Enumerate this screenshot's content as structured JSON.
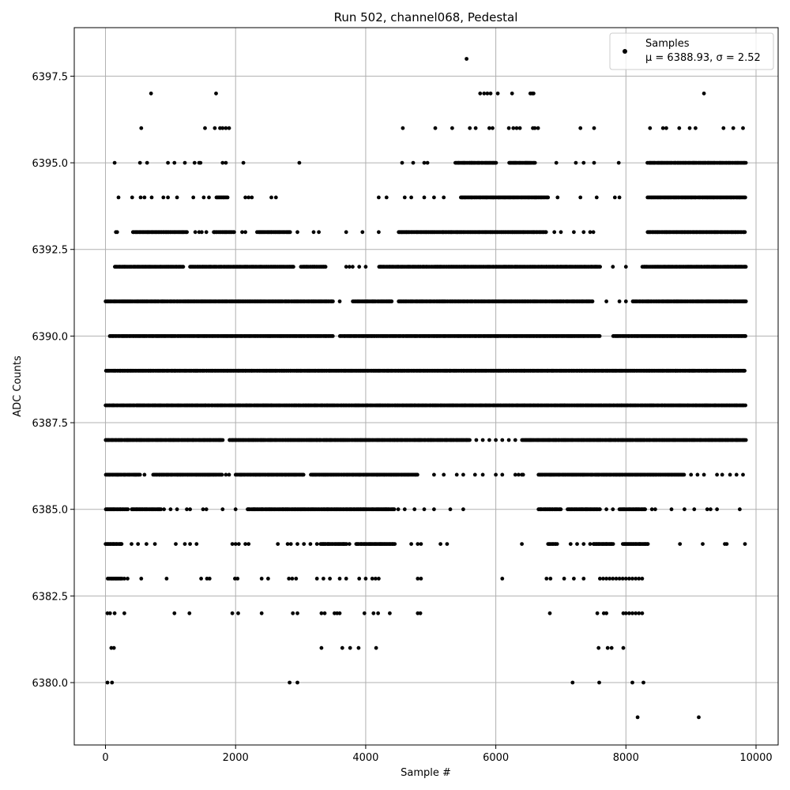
{
  "chart_data": {
    "type": "scatter",
    "title": "Run 502, channel068, Pedestal",
    "xlabel": "Sample #",
    "ylabel": "ADC Counts",
    "xlim": [
      -480,
      10340
    ],
    "ylim": [
      6378.2,
      6398.9
    ],
    "x_ticks": [
      0,
      2000,
      4000,
      6000,
      8000,
      10000
    ],
    "x_tick_labels": [
      "0",
      "2000",
      "4000",
      "6000",
      "8000",
      "10000"
    ],
    "y_ticks": [
      6380.0,
      6382.5,
      6385.0,
      6387.5,
      6390.0,
      6392.5,
      6395.0,
      6397.5
    ],
    "y_tick_labels": [
      "6380.0",
      "6382.5",
      "6385.0",
      "6387.5",
      "6390.0",
      "6392.5",
      "6395.0",
      "6397.5"
    ],
    "grid": true,
    "legend_position": "top-right",
    "series": [
      {
        "name": "Samples",
        "legend_stats": "μ = 6388.93, σ = 2.52",
        "color": "#000000",
        "marker": "circle",
        "n_samples": 9840,
        "x_range": [
          0,
          9839
        ],
        "levels": [
          {
            "y": 6380,
            "x": [
              30,
              100,
              2830,
              2950,
              7180,
              7590,
              8100,
              8270
            ]
          },
          {
            "y": 6379,
            "x": [
              8180,
              9120
            ]
          },
          {
            "y": 6381,
            "x": [
              90,
              130,
              3320,
              3640,
              3760,
              3890,
              4160,
              7580,
              7720,
              7780,
              7960
            ]
          },
          {
            "y": 6398,
            "x": [
              5550
            ]
          },
          {
            "y": 6397,
            "x": [
              700,
              1700,
              5760,
              5820,
              5870,
              5920,
              6030,
              6250,
              6530,
              6560,
              6580,
              9200
            ]
          },
          {
            "y": 6396,
            "x": [
              550,
              1530,
              1680,
              1760,
              1800,
              1850,
              1900,
              4570,
              5070,
              5330,
              5600,
              5690,
              5900,
              5950,
              6200,
              6270,
              6320,
              6370,
              6570,
              6600,
              6650,
              7300,
              7510,
              8370,
              8570,
              8620,
              8820,
              8980,
              9070,
              9500,
              9650,
              9800
            ]
          }
        ],
        "bands": [
          {
            "y": 6395,
            "segments": [
              [
                5370,
                6000
              ],
              [
                6200,
                6600
              ],
              [
                8330,
                9840
              ]
            ],
            "sparse_x": [
              140,
              530,
              640,
              960,
              1060,
              1220,
              1370,
              1440,
              1460,
              1800,
              1850,
              2120,
              2980,
              4560,
              4730,
              4900,
              4950,
              6930,
              7230,
              7350,
              7510,
              7890
            ]
          },
          {
            "y": 6394,
            "segments": [
              [
                1700,
                1880
              ],
              [
                5460,
                6800
              ],
              [
                8330,
                9840
              ]
            ],
            "sparse_x": [
              200,
              410,
              540,
              600,
              710,
              890,
              960,
              1100,
              1350,
              1510,
              1590,
              2150,
              2200,
              2250,
              2550,
              2620,
              4200,
              4320,
              4600,
              4700,
              4900,
              5050,
              5200,
              6950,
              7300,
              7550,
              7830,
              7900
            ]
          },
          {
            "y": 6393,
            "segments": [
              [
                420,
                1260
              ],
              [
                1660,
                1990
              ],
              [
                2330,
                2850
              ],
              [
                4500,
                6780
              ],
              [
                8330,
                9840
              ]
            ],
            "sparse_x": [
              160,
              180,
              1380,
              1440,
              1480,
              1550,
              2100,
              2150,
              2950,
              3200,
              3280,
              3700,
              3950,
              4200,
              6900,
              7000,
              7200,
              7350,
              7450,
              7500
            ]
          },
          {
            "y": 6392,
            "segments": [
              [
                140,
                1200
              ],
              [
                1300,
                2900
              ],
              [
                3000,
                3400
              ],
              [
                4200,
                7600
              ],
              [
                8250,
                9840
              ]
            ],
            "sparse_x": [
              3700,
              3750,
              3800,
              3900,
              4000,
              7800,
              8000
            ]
          },
          {
            "y": 6391,
            "segments": [
              [
                0,
                3500
              ],
              [
                3800,
                4400
              ],
              [
                4500,
                7500
              ],
              [
                8100,
                9840
              ]
            ],
            "sparse_x": [
              3600,
              7700,
              7900,
              8000
            ]
          },
          {
            "y": 6390,
            "segments": [
              [
                60,
                3500
              ],
              [
                3600,
                7600
              ],
              [
                7800,
                9840
              ]
            ],
            "sparse_x": []
          },
          {
            "y": 6389,
            "segments": [
              [
                0,
                9840
              ]
            ],
            "sparse_x": []
          },
          {
            "y": 6388,
            "segments": [
              [
                0,
                9840
              ]
            ],
            "sparse_x": []
          },
          {
            "y": 6387,
            "segments": [
              [
                0,
                1800
              ],
              [
                1900,
                5600
              ],
              [
                6400,
                9840
              ]
            ],
            "sparse_x": [
              5700,
              5800,
              5900,
              6000,
              6100,
              6200,
              6300
            ]
          },
          {
            "y": 6386,
            "segments": [
              [
                0,
                540
              ],
              [
                730,
                1800
              ],
              [
                2000,
                3050
              ],
              [
                3150,
                4800
              ],
              [
                6650,
                8900
              ]
            ],
            "sparse_x": [
              600,
              1850,
              1900,
              5050,
              5200,
              5400,
              5500,
              5680,
              5800,
              6000,
              6100,
              6300,
              6350,
              6400,
              6420,
              9000,
              9100,
              9200,
              9400,
              9480,
              9600,
              9700,
              9800
            ]
          },
          {
            "y": 6385,
            "segments": [
              [
                0,
                340
              ],
              [
                400,
                860
              ],
              [
                2180,
                4450
              ],
              [
                6650,
                7000
              ],
              [
                7100,
                7600
              ],
              [
                7900,
                8300
              ]
            ],
            "sparse_x": [
              900,
              1000,
              1100,
              1250,
              1300,
              1500,
              1550,
              1800,
              2000,
              4500,
              4600,
              4750,
              4900,
              5050,
              5300,
              5500,
              7700,
              7800,
              8400,
              8450,
              8700,
              8900,
              9050,
              9250,
              9300,
              9400,
              9750
            ]
          },
          {
            "y": 6384,
            "segments": [
              [
                0,
                250
              ],
              [
                3300,
                3700
              ],
              [
                3850,
                4450
              ],
              [
                6800,
                6950
              ],
              [
                7500,
                7800
              ],
              [
                7950,
                8350
              ]
            ],
            "sparse_x": [
              400,
              500,
              630,
              760,
              1080,
              1220,
              1300,
              1400,
              1950,
              2000,
              2050,
              2150,
              2200,
              2650,
              2800,
              2850,
              2950,
              3050,
              3150,
              3250,
              3750,
              4700,
              4800,
              4850,
              5150,
              5250,
              6400,
              7150,
              7250,
              7350,
              7450,
              8830,
              9180,
              9520,
              9550,
              9830
            ]
          },
          {
            "y": 6383,
            "segments": [
              [
                30,
                250
              ]
            ],
            "sparse_x": [
              290,
              340,
              550,
              940,
              1470,
              1560,
              1600,
              1990,
              2030,
              2400,
              2500,
              2820,
              2870,
              2930,
              3250,
              3350,
              3450,
              3600,
              3700,
              3900,
              4000,
              4100,
              4150,
              4200,
              4800,
              4850,
              6100,
              6780,
              6840,
              7050,
              7200,
              7350,
              7600,
              7650,
              7700,
              7750,
              7800,
              7850,
              7900,
              7950,
              8000,
              8050,
              8100,
              8150,
              8200,
              8250
            ]
          },
          {
            "y": 6382,
            "segments": [],
            "sparse_x": [
              30,
              70,
              140,
              290,
              1060,
              1290,
              1950,
              2040,
              2400,
              2880,
              2950,
              3320,
              3370,
              3520,
              3560,
              3600,
              3980,
              4120,
              4190,
              4370,
              4800,
              4840,
              6830,
              7560,
              7660,
              7700,
              7960,
              8000,
              8050,
              8100,
              8150,
              8200,
              8250
            ]
          }
        ]
      }
    ]
  }
}
